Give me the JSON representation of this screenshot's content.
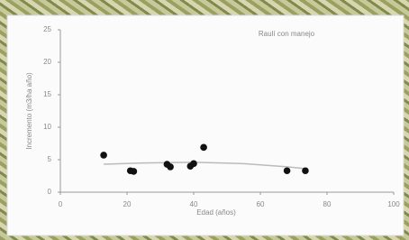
{
  "chart_data": {
    "type": "scatter",
    "annotation": "Raulí con manejo",
    "xlabel": "Edad (años)",
    "ylabel": "Incremento (m3/ha año)",
    "x": [
      13,
      21,
      22,
      32,
      33,
      39,
      40,
      43,
      68,
      73.5
    ],
    "values": [
      5.7,
      3.3,
      3.2,
      4.3,
      3.9,
      4.0,
      4.4,
      6.9,
      3.3,
      3.3
    ],
    "color": "#111111",
    "trendline": {
      "x": [
        13,
        25,
        40,
        55,
        68,
        74
      ],
      "values": [
        4.3,
        4.5,
        4.6,
        4.4,
        3.9,
        3.6
      ],
      "color": "#bbbbbb"
    },
    "xlim": [
      0,
      100
    ],
    "xticks": [
      0,
      20,
      40,
      60,
      80,
      100
    ],
    "ylim": [
      0,
      25
    ],
    "yticks": [
      0,
      5,
      10,
      15,
      20,
      25
    ],
    "grid": false
  }
}
